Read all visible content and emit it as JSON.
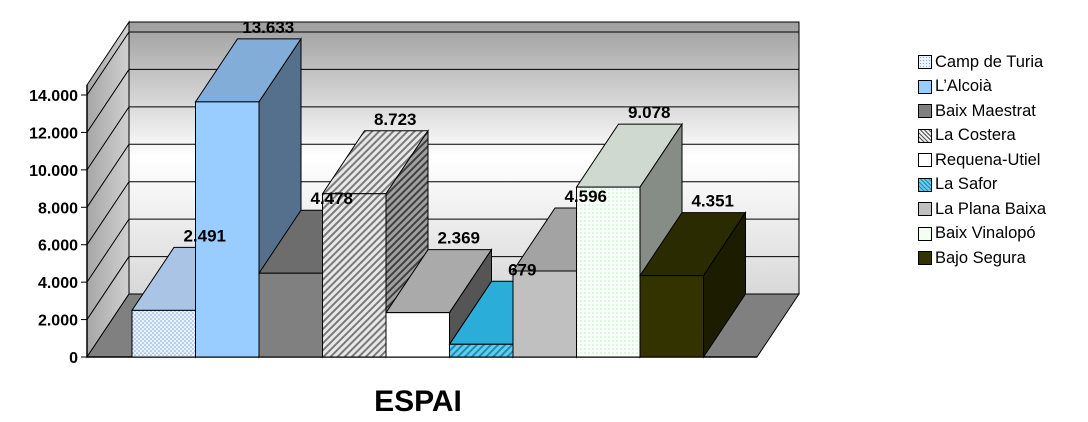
{
  "chart_data": {
    "type": "bar",
    "three_d": true,
    "xlabel": "ESPAI",
    "ylabel": "",
    "ylim": [
      0,
      14000
    ],
    "yticks": [
      "0",
      "2.000",
      "4.000",
      "6.000",
      "8.000",
      "10.000",
      "12.000",
      "14.000"
    ],
    "grid": true,
    "legend_position": "right",
    "series": [
      {
        "name": "Camp de Turia",
        "value": 2491,
        "label": "2.491",
        "color": "#dbe8f8",
        "pattern": "dots"
      },
      {
        "name": "L’Alcoià",
        "value": 13633,
        "label": "13.633",
        "color": "#99ccff",
        "pattern": "solid"
      },
      {
        "name": "Baix Maestrat",
        "value": 4478,
        "label": "4.478",
        "color": "#808080",
        "pattern": "solid"
      },
      {
        "name": "La Costera",
        "value": 8723,
        "label": "8.723",
        "color": "#bfbfbf",
        "pattern": "diagonal"
      },
      {
        "name": "Requena-Utiel",
        "value": 2369,
        "label": "2.369",
        "color": "#ffffff",
        "pattern": "solid"
      },
      {
        "name": "La Safor",
        "value": 679,
        "label": "679",
        "color": "#33ccff",
        "pattern": "diagonal"
      },
      {
        "name": "La Plana Baixa",
        "value": 4596,
        "label": "4.596",
        "color": "#c0c0c0",
        "pattern": "solid"
      },
      {
        "name": "Baix Vinalopó",
        "value": 9078,
        "label": "9.078",
        "color": "#f4fff4",
        "pattern": "dots"
      },
      {
        "name": "Bajo Segura",
        "value": 4351,
        "label": "4.351",
        "color": "#333300",
        "pattern": "solid"
      }
    ]
  }
}
